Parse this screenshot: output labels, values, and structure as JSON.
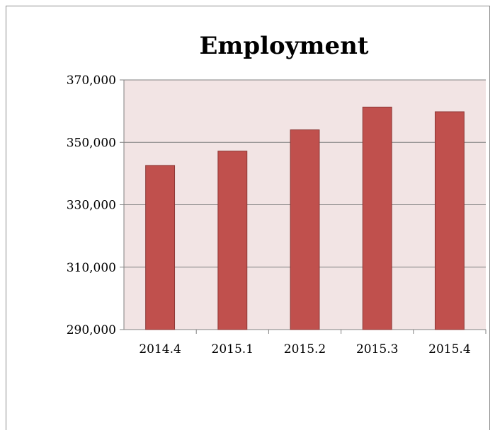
{
  "chart_data": {
    "type": "bar",
    "title": "Employment",
    "xlabel": "",
    "ylabel": "",
    "categories": [
      "2014.4",
      "2015.1",
      "2015.2",
      "2015.3",
      "2015.4"
    ],
    "values": [
      342600,
      347200,
      354000,
      361300,
      359800
    ],
    "ylim": [
      290000,
      370000
    ],
    "yticks": [
      290000,
      310000,
      330000,
      350000,
      370000
    ],
    "ytick_labels": [
      "290,000",
      "310,000",
      "330,000",
      "350,000",
      "370,000"
    ],
    "grid": true,
    "legend": "none",
    "colors": {
      "bar_fill": "#c0504d",
      "bar_stroke": "#8c3836",
      "plot_background": "#f2e4e4",
      "gridline": "#808080",
      "axis": "#808080"
    }
  }
}
